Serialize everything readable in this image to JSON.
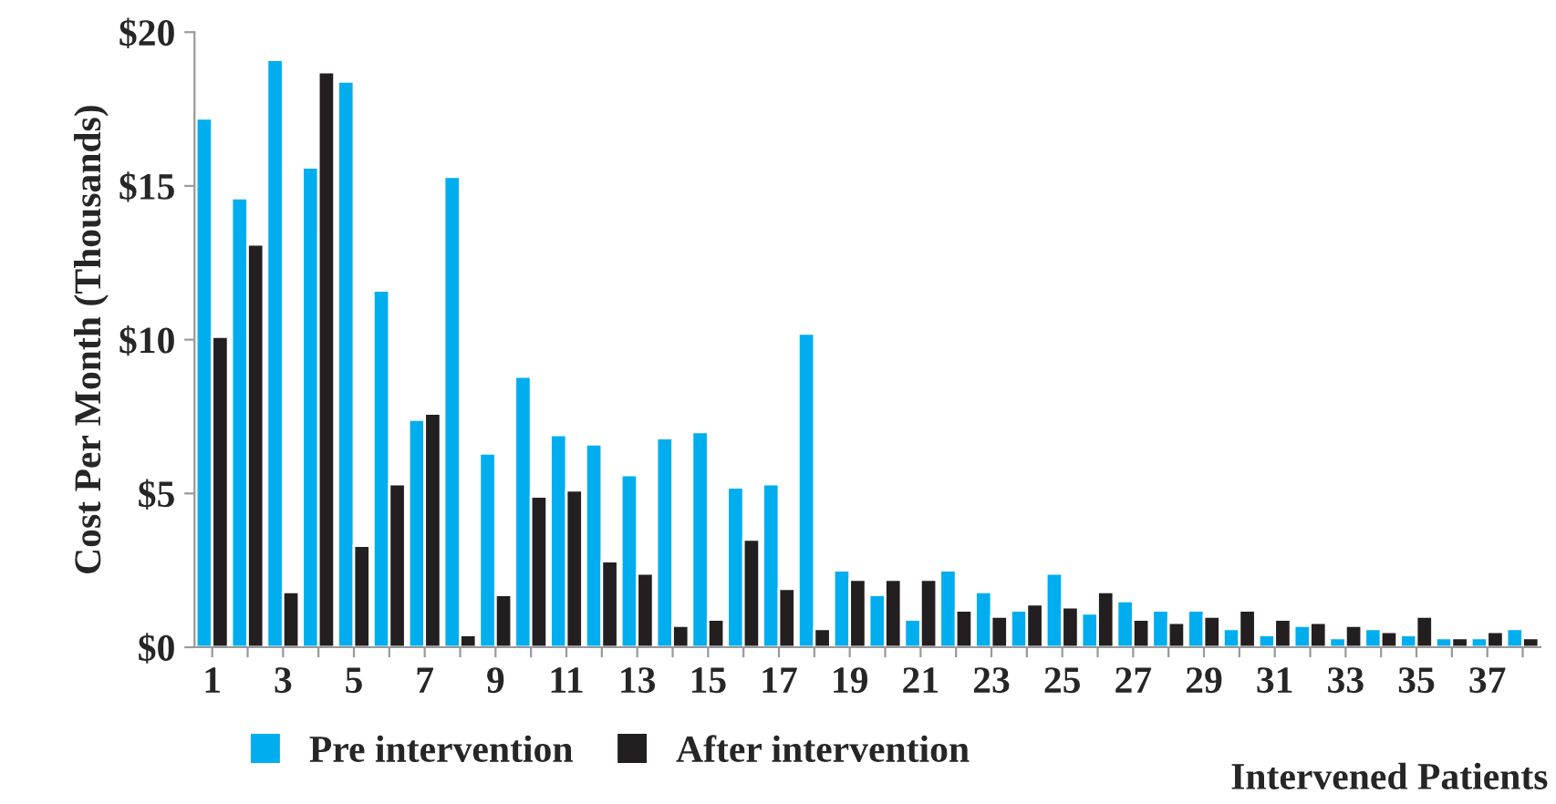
{
  "chart_data": {
    "type": "bar",
    "xlabel": "Intervened Patients",
    "ylabel": "Cost Per Month (Thousands)",
    "categories": [
      "1",
      null,
      "3",
      null,
      "5",
      null,
      "7",
      null,
      "9",
      null,
      "11",
      null,
      "13",
      null,
      "15",
      null,
      "17",
      null,
      "19",
      null,
      "21",
      null,
      "23",
      null,
      "25",
      null,
      "27",
      null,
      "29",
      null,
      "31",
      null,
      "33",
      null,
      "35",
      null,
      "37",
      null
    ],
    "series": [
      {
        "name": "Pre intervention",
        "color": "#00aeef",
        "values": [
          17.2,
          14.6,
          19.1,
          15.6,
          18.4,
          11.6,
          7.4,
          15.3,
          6.3,
          8.8,
          6.9,
          6.6,
          5.6,
          6.8,
          7.0,
          5.2,
          5.3,
          10.2,
          2.5,
          1.7,
          0.9,
          2.5,
          1.8,
          1.2,
          2.4,
          1.1,
          1.5,
          1.2,
          1.2,
          0.6,
          0.4,
          0.7,
          0.3,
          0.6,
          0.4,
          0.3,
          0.3,
          0.6
        ]
      },
      {
        "name": "After intervention",
        "color": "#231f20",
        "values": [
          10.1,
          13.1,
          1.8,
          18.7,
          3.3,
          5.3,
          7.6,
          0.4,
          1.7,
          4.9,
          5.1,
          2.8,
          2.4,
          0.7,
          0.9,
          3.5,
          1.9,
          0.6,
          2.2,
          2.2,
          2.2,
          1.2,
          1.0,
          1.4,
          1.3,
          1.8,
          0.9,
          0.8,
          1.0,
          1.2,
          0.9,
          0.8,
          0.7,
          0.5,
          1.0,
          0.3,
          0.5,
          0.3
        ]
      }
    ],
    "ylim": [
      0,
      20
    ],
    "yticks": [
      {
        "value": 0,
        "label": "$0"
      },
      {
        "value": 5,
        "label": "$5"
      },
      {
        "value": 10,
        "label": "$10"
      },
      {
        "value": 15,
        "label": "$15"
      },
      {
        "value": 20,
        "label": "$20"
      }
    ],
    "grid": false,
    "legend": "bottom"
  }
}
